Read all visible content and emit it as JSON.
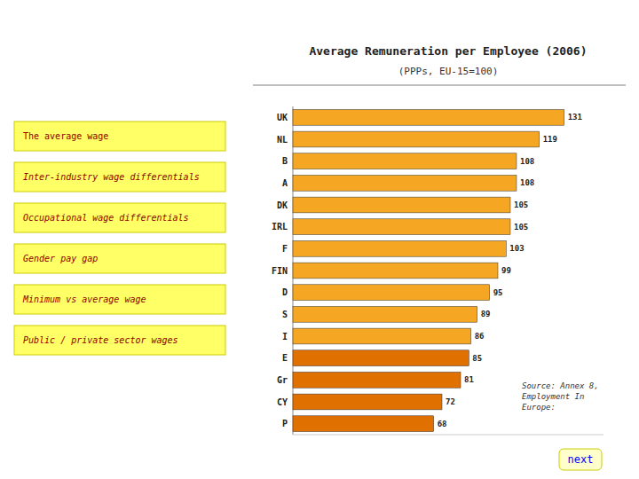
{
  "chart_data": {
    "type": "bar",
    "orientation": "horizontal",
    "title": "Average Remuneration per Employee (2006)",
    "subtitle": "(PPPs, EU-15=100)",
    "categories": [
      "UK",
      "NL",
      "B",
      "A",
      "DK",
      "IRL",
      "F",
      "FIN",
      "D",
      "S",
      "I",
      "E",
      "Gr",
      "CY",
      "P"
    ],
    "values": [
      131,
      119,
      108,
      108,
      105,
      105,
      103,
      99,
      95,
      89,
      86,
      85,
      81,
      72,
      68
    ],
    "colors": [
      "#F5A623",
      "#F5A623",
      "#F5A623",
      "#F5A623",
      "#F5A623",
      "#F5A623",
      "#F5A623",
      "#F5A623",
      "#F5A623",
      "#F5A623",
      "#F5A623",
      "#E07000",
      "#E07000",
      "#E07000",
      "#E07000"
    ],
    "xlim": [
      0,
      150
    ],
    "grid": false,
    "data_labels": true,
    "tick_labels": "y",
    "annotations": [
      "The average wage",
      "Inter-industry wage differentials",
      "Occupational wage differentials",
      "Gender pay gap",
      "Minimum vs average wage",
      "Public / private sector wages",
      "Source: Annex 8,\nEmployment In\nEurope:",
      "next"
    ]
  }
}
